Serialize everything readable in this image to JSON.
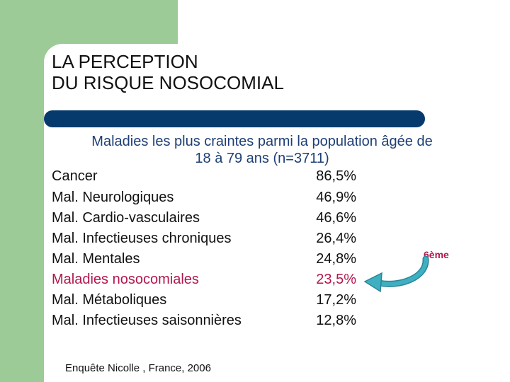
{
  "title": {
    "line1": "LA PERCEPTION",
    "line2": "DU RISQUE NOSOCOMIAL"
  },
  "subtitle": {
    "line1": "Maladies les plus craintes parmi la population âgée de",
    "line2": "18 à 79 ans (n=3711)"
  },
  "rows": [
    {
      "label": "Cancer",
      "value": "86,5%"
    },
    {
      "label": "Mal. Neurologiques",
      "value": "46,9%"
    },
    {
      "label": "Mal. Cardio-vasculaires",
      "value": "46,6%"
    },
    {
      "label": "Mal. Infectieuses chroniques",
      "value": "26,4%"
    },
    {
      "label": "Mal. Mentales",
      "value": "24,8%"
    },
    {
      "label": "Maladies nosocomiales",
      "value": "23,5%"
    },
    {
      "label": "Mal. Métaboliques",
      "value": "17,2%"
    },
    {
      "label": "Mal. Infectieuses saisonnières",
      "value": "12,8%"
    }
  ],
  "rank_note": "6ème",
  "source": "Enquête Nicolle , France, 2006",
  "colors": {
    "green": "#9ccb98",
    "bar": "#063a6c",
    "highlight": "#b3164f",
    "subtitle": "#1e3f75",
    "arrow": "#3fb0c2"
  }
}
